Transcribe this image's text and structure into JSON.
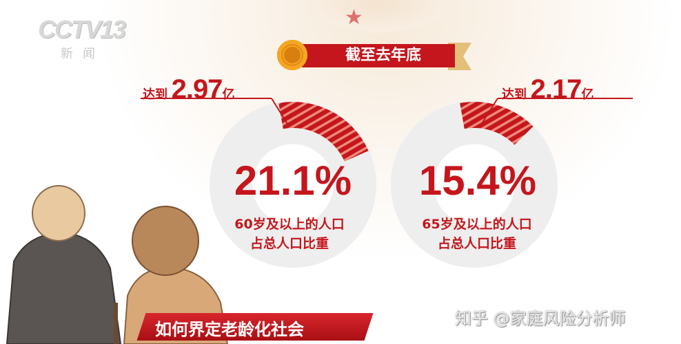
{
  "channel_logo": {
    "text": "CCTV13",
    "sub": "新闻"
  },
  "banner": {
    "label": "截至去年底"
  },
  "colors": {
    "accent": "#c4161c",
    "ring": "#eeeeee",
    "gold": "#f6a623"
  },
  "chart_data": [
    {
      "type": "pie",
      "reach_label": "达到",
      "reach_value": "2.97",
      "reach_unit": "亿",
      "value_percent": 21.1,
      "value_label": "21.1%",
      "description": [
        "60岁及以上的人口",
        "占总人口比重"
      ]
    },
    {
      "type": "pie",
      "reach_label": "达到",
      "reach_value": "2.17",
      "reach_unit": "亿",
      "value_percent": 15.4,
      "value_label": "15.4%",
      "description": [
        "65岁及以上的人口",
        "占总人口比重"
      ]
    }
  ],
  "subtitle": "如何界定老龄化社会",
  "watermark": "知乎 @家庭风险分析师"
}
